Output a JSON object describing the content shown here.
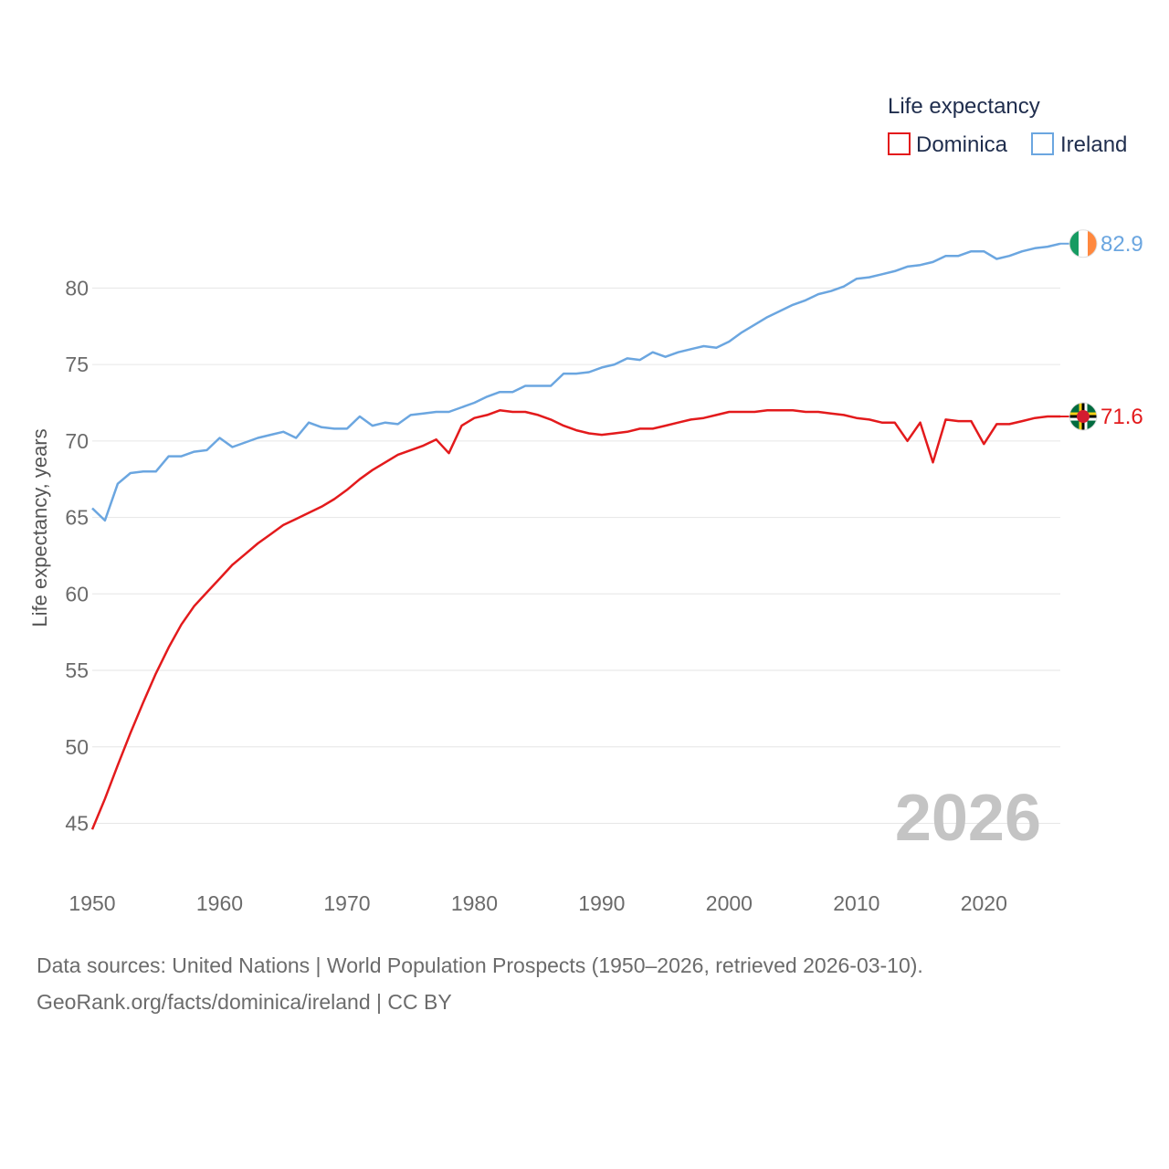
{
  "chart_data": {
    "type": "line",
    "ylabel": "Life expectancy, years",
    "xlabel": "",
    "legend_title": "Life expectancy",
    "legend_position": "top-right",
    "year_watermark": "2026",
    "xlim": [
      1950,
      2026
    ],
    "ylim": [
      43,
      84.5
    ],
    "x_ticks": [
      1950,
      1960,
      1970,
      1980,
      1990,
      2000,
      2010,
      2020
    ],
    "x_tick_labels": [
      "1950",
      "1960",
      "1970",
      "1980",
      "1990",
      "2000",
      "2010",
      "2020"
    ],
    "y_ticks": [
      45,
      50,
      55,
      60,
      65,
      70,
      75,
      80
    ],
    "y_tick_labels": [
      "45",
      "50",
      "55",
      "60",
      "65",
      "70",
      "75",
      "80"
    ],
    "x": [
      1950,
      1951,
      1952,
      1953,
      1954,
      1955,
      1956,
      1957,
      1958,
      1959,
      1960,
      1961,
      1962,
      1963,
      1964,
      1965,
      1966,
      1967,
      1968,
      1969,
      1970,
      1971,
      1972,
      1973,
      1974,
      1975,
      1976,
      1977,
      1978,
      1979,
      1980,
      1981,
      1982,
      1983,
      1984,
      1985,
      1986,
      1987,
      1988,
      1989,
      1990,
      1991,
      1992,
      1993,
      1994,
      1995,
      1996,
      1997,
      1998,
      1999,
      2000,
      2001,
      2002,
      2003,
      2004,
      2005,
      2006,
      2007,
      2008,
      2009,
      2010,
      2011,
      2012,
      2013,
      2014,
      2015,
      2016,
      2017,
      2018,
      2019,
      2020,
      2021,
      2022,
      2023,
      2024,
      2025,
      2026
    ],
    "series": [
      {
        "name": "Dominica",
        "color": "#e31a1c",
        "end_label": "71.6",
        "flag_icon": "dominica-flag-icon",
        "values": [
          44.6,
          46.6,
          48.8,
          50.9,
          52.9,
          54.8,
          56.5,
          58.0,
          59.2,
          60.1,
          61.0,
          61.9,
          62.6,
          63.3,
          63.9,
          64.5,
          64.9,
          65.3,
          65.7,
          66.2,
          66.8,
          67.5,
          68.1,
          68.6,
          69.1,
          69.4,
          69.7,
          70.1,
          69.2,
          71.0,
          71.5,
          71.7,
          72.0,
          71.9,
          71.9,
          71.7,
          71.4,
          71.0,
          70.7,
          70.5,
          70.4,
          70.5,
          70.6,
          70.8,
          70.8,
          71.0,
          71.2,
          71.4,
          71.5,
          71.7,
          71.9,
          71.9,
          71.9,
          72.0,
          72.0,
          72.0,
          71.9,
          71.9,
          71.8,
          71.7,
          71.5,
          71.4,
          71.2,
          71.2,
          70.0,
          71.2,
          68.6,
          71.4,
          71.3,
          71.3,
          69.8,
          71.1,
          71.1,
          71.3,
          71.5,
          71.6,
          71.6
        ]
      },
      {
        "name": "Ireland",
        "color": "#6ba6e0",
        "end_label": "82.9",
        "flag_icon": "ireland-flag-icon",
        "values": [
          65.6,
          64.8,
          67.2,
          67.9,
          68.0,
          68.0,
          69.0,
          69.0,
          69.3,
          69.4,
          70.2,
          69.6,
          69.9,
          70.2,
          70.4,
          70.6,
          70.2,
          71.2,
          70.9,
          70.8,
          70.8,
          71.6,
          71.0,
          71.2,
          71.1,
          71.7,
          71.8,
          71.9,
          71.9,
          72.2,
          72.5,
          72.9,
          73.2,
          73.2,
          73.6,
          73.6,
          73.6,
          74.4,
          74.4,
          74.5,
          74.8,
          75.0,
          75.4,
          75.3,
          75.8,
          75.5,
          75.8,
          76.0,
          76.2,
          76.1,
          76.5,
          77.1,
          77.6,
          78.1,
          78.5,
          78.9,
          79.2,
          79.6,
          79.8,
          80.1,
          80.6,
          80.7,
          80.9,
          81.1,
          81.4,
          81.5,
          81.7,
          82.1,
          82.1,
          82.4,
          82.4,
          81.9,
          82.1,
          82.4,
          82.6,
          82.7,
          82.9
        ]
      }
    ]
  },
  "footer": {
    "line1": "Data sources: United Nations | World Population Prospects (1950–2026, retrieved 2026-03-10).",
    "line2": "GeoRank.org/facts/dominica/ireland | CC BY"
  }
}
